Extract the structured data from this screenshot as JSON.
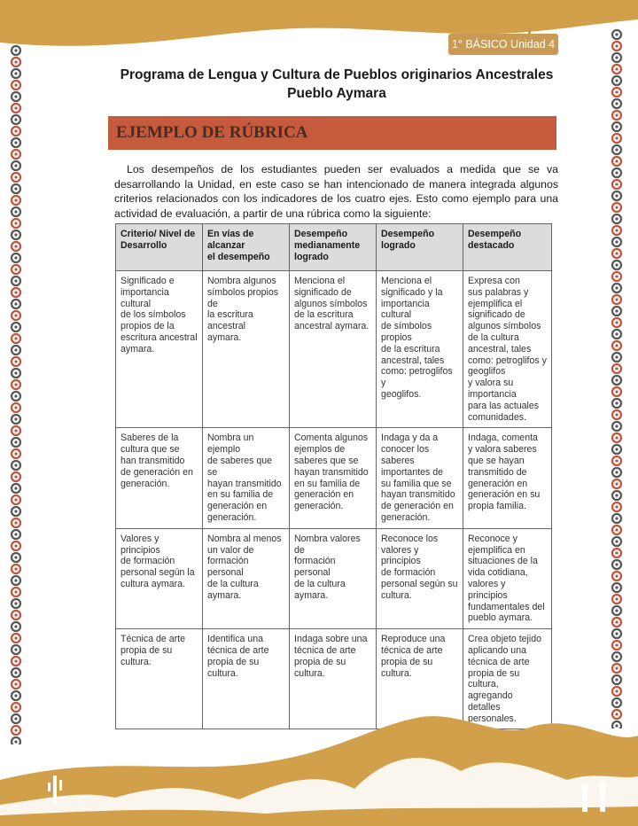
{
  "header": {
    "badge": "1° BÁSICO Unidad 4"
  },
  "title": {
    "line1": "Programa de Lengua y Cultura de Pueblos originarios Ancestrales",
    "line2": "Pueblo Aymara"
  },
  "section_heading": "EJEMPLO DE RÚBRICA",
  "intro": "Los desempeños de los estudiantes pueden ser evaluados a medida que se va desarrollando la Unidad, en este caso se han intencionado de manera integrada algunos criterios relacionados con los indicadores de los cuatro ejes. Esto como ejemplo para una actividad de evaluación, a partir de una rúbrica como la siguiente:",
  "colors": {
    "gold": "#d2a04a",
    "heading_bar": "#c65a3c",
    "table_header": "#dcdcdc"
  },
  "rubric": {
    "headers": [
      "Criterio/ Nivel de\nDesarrollo",
      "En vías de alcanzar\nel desempeño",
      "Desempeño\nmedianamente\nlogrado",
      "Desempeño\nlogrado",
      "Desempeño\ndestacado"
    ],
    "rows": [
      [
        "Significado e\nimportancia cultural\nde los símbolos\npropios de la\nescritura ancestral\naymara.",
        "Nombra algunos\nsímbolos propios de\nla escritura ancestral\naymara.",
        "Menciona el\nsignificado de\nalgunos símbolos\nde la escritura\nancestral aymara.",
        "Menciona el\nsignificado y la\nimportancia cultural\nde símbolos propios\nde la escritura\nancestral, tales\ncomo: petroglifos y\ngeoglifos.",
        "Expresa con\nsus palabras y\nejemplifica el\nsignificado de\nalgunos símbolos\nde la cultura\nancestral, tales\ncomo: petroglifos y\ngeoglifos\n y valora su\nimportancia\npara las actuales\ncomunidades."
      ],
      [
        "Saberes de la\ncultura que se\nhan transmitido\nde generación en\ngeneración.",
        "Nombra un ejemplo\nde saberes que se\nhayan transmitido\nen su familia de\ngeneración en\ngeneración.",
        "Comenta algunos\nejemplos de\nsaberes que se\nhayan transmitido\nen su familia de\ngeneración en\ngeneración.",
        "Indaga y da a\nconocer los saberes\nimportantes de\nsu familia que se\nhayan transmitido\nde generación en\ngeneración.",
        "Indaga, comenta\ny valora saberes\nque se hayan\ntransmitido de\ngeneración en\ngeneración en su\npropia familia."
      ],
      [
        "Valores y principios\nde formación\npersonal según la\ncultura aymara.",
        "Nombra al menos\nun valor de\nformación personal\nde la cultura\naymara.",
        "Nombra valores de\nformación personal\nde la cultura\naymara.",
        "Reconoce los\nvalores y principios\nde formación\npersonal según su\ncultura.",
        "Reconoce y\nejemplifica en\nsituaciones de la\nvida cotidiana,\nvalores y principios\nfundamentales del\npueblo aymara."
      ],
      [
        "Técnica de arte\npropia de su cultura.",
        "Identifica una\ntécnica de arte\npropia de su cultura.",
        "Indaga sobre  una\ntécnica de arte\npropia de su cultura.",
        "Reproduce una\ntécnica de arte\npropia de su cultura.",
        "Crea objeto tejido\naplicando una\ntécnica de arte\npropia de su cultura,\nagregando detalles\npersonales."
      ]
    ]
  }
}
